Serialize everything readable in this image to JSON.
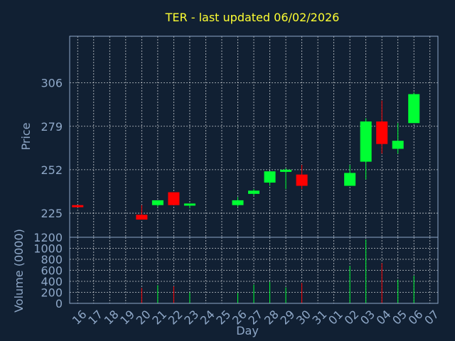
{
  "chart_data": {
    "type": "candlestick",
    "title": "TER - last updated 06/02/2026",
    "xlabel": "Day",
    "price_ylabel": "Price",
    "volume_ylabel": "Volume (0000)",
    "x_ticks": [
      "16",
      "17",
      "18",
      "19",
      "20",
      "21",
      "22",
      "23",
      "24",
      "25",
      "26",
      "27",
      "28",
      "29",
      "30",
      "31",
      "01",
      "02",
      "03",
      "04",
      "05",
      "06",
      "07"
    ],
    "price_ticks": [
      225,
      252,
      279,
      306
    ],
    "price_ylim": [
      210,
      335
    ],
    "volume_ticks": [
      0,
      200,
      400,
      600,
      800,
      1000,
      1200
    ],
    "volume_ylim": [
      0,
      1200
    ],
    "grid": true,
    "colors": {
      "up": "#00ff33",
      "down": "#ff0000",
      "background": "#112033",
      "title": "#ffff33",
      "axis": "#8fa8c8"
    },
    "candles": [
      {
        "day": "16",
        "open": 230,
        "high": 230,
        "low": 229,
        "close": 229,
        "volume": 0
      },
      {
        "day": "20",
        "open": 224,
        "high": 230,
        "low": 221,
        "close": 221,
        "volume": 280
      },
      {
        "day": "21",
        "open": 230,
        "high": 233,
        "low": 229,
        "close": 233,
        "volume": 330
      },
      {
        "day": "22",
        "open": 238,
        "high": 238,
        "low": 230,
        "close": 230,
        "volume": 310
      },
      {
        "day": "23",
        "open": 230,
        "high": 231,
        "low": 228,
        "close": 231,
        "volume": 200
      },
      {
        "day": "26",
        "open": 230,
        "high": 235,
        "low": 229,
        "close": 233,
        "volume": 190
      },
      {
        "day": "27",
        "open": 237,
        "high": 240,
        "low": 236,
        "close": 239,
        "volume": 340
      },
      {
        "day": "28",
        "open": 244,
        "high": 251,
        "low": 242,
        "close": 251,
        "volume": 390
      },
      {
        "day": "29",
        "open": 251,
        "high": 253,
        "low": 240,
        "close": 252,
        "volume": 290
      },
      {
        "day": "30",
        "open": 249,
        "high": 255,
        "low": 240,
        "close": 242,
        "volume": 370
      },
      {
        "day": "02",
        "open": 242,
        "high": 255,
        "low": 242,
        "close": 250,
        "volume": 680
      },
      {
        "day": "03",
        "open": 257,
        "high": 284,
        "low": 246,
        "close": 282,
        "volume": 1160
      },
      {
        "day": "04",
        "open": 282,
        "high": 295,
        "low": 262,
        "close": 268,
        "volume": 730
      },
      {
        "day": "05",
        "open": 265,
        "high": 281,
        "low": 262,
        "close": 270,
        "volume": 430
      },
      {
        "day": "06",
        "open": 281,
        "high": 300,
        "low": 281,
        "close": 299,
        "volume": 500
      }
    ]
  }
}
